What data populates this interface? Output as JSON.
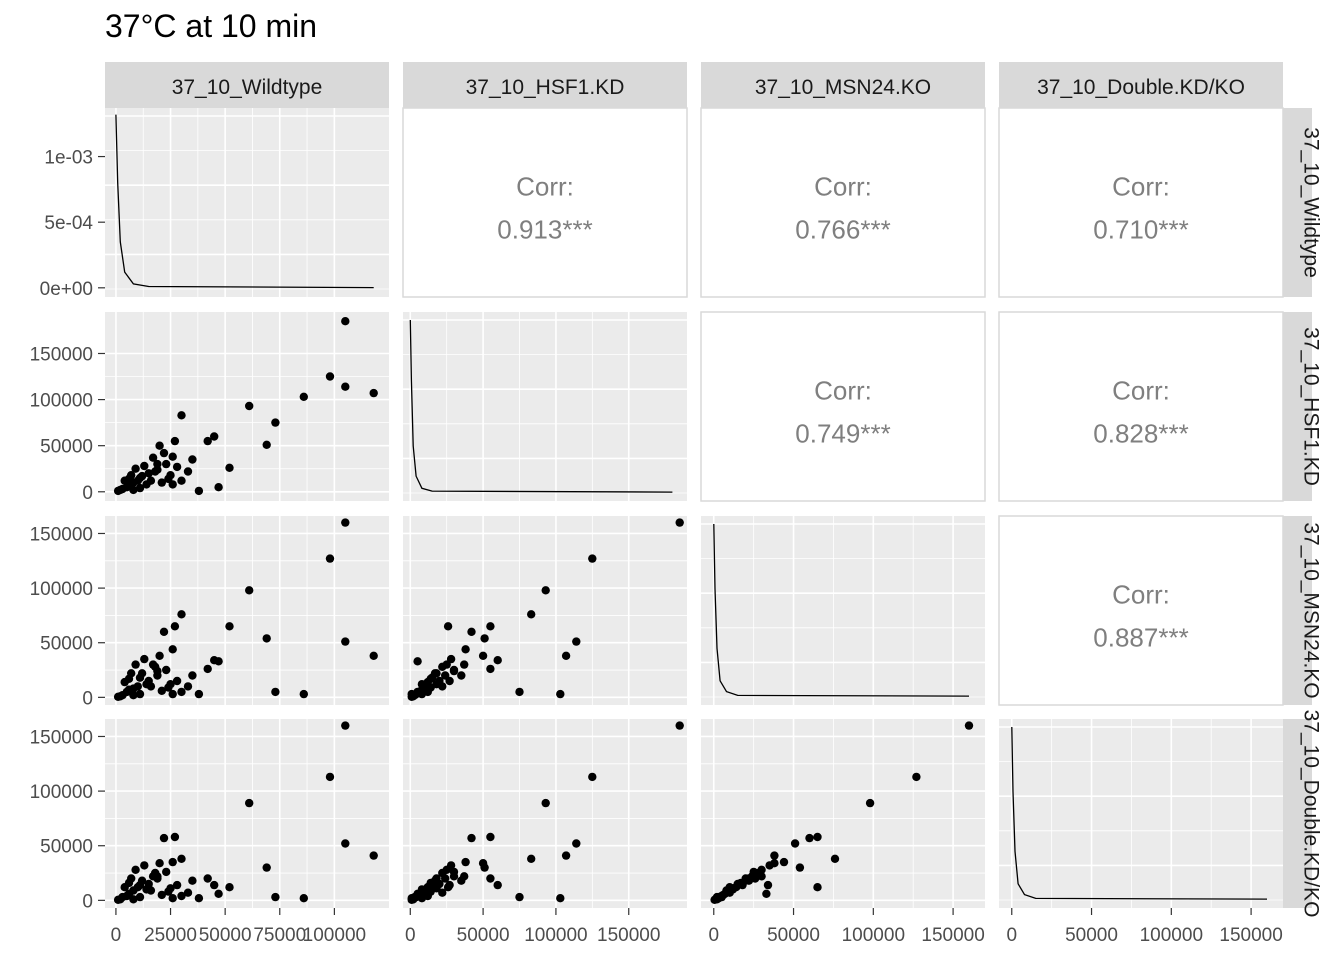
{
  "title": "37°C at 10 min",
  "chart_data": {
    "type": "scatter",
    "title": "37°C at 10 min",
    "variables": [
      "37_10_Wildtype",
      "37_10_HSF1.KD",
      "37_10_MSN24.KO",
      "37_10_Double.KD/KO"
    ],
    "axes": {
      "x": [
        {
          "ticks": [
            "0",
            "25000",
            "50000",
            "75000",
            "100000"
          ],
          "tick_values": [
            0,
            25000,
            50000,
            75000,
            100000
          ],
          "range": [
            -5000,
            125000
          ]
        },
        {
          "ticks": [
            "0",
            "50000",
            "100000",
            "150000"
          ],
          "tick_values": [
            0,
            50000,
            100000,
            150000
          ],
          "range": [
            -5000,
            190000
          ]
        },
        {
          "ticks": [
            "0",
            "50000",
            "100000",
            "150000"
          ],
          "tick_values": [
            0,
            50000,
            100000,
            150000
          ],
          "range": [
            -8000,
            170000
          ]
        },
        {
          "ticks": [
            "0",
            "50000",
            "100000",
            "150000"
          ],
          "tick_values": [
            0,
            50000,
            100000,
            150000
          ],
          "range": [
            -8000,
            170000
          ]
        }
      ],
      "y": [
        {
          "ticks": [
            "1e-03",
            "5e-04",
            "0e+00"
          ],
          "tick_values": [
            0.001,
            0.0005,
            0
          ],
          "range": [
            -7e-05,
            0.00137
          ]
        },
        {
          "ticks": [
            "150000",
            "100000",
            "50000",
            "0"
          ],
          "tick_values": [
            150000,
            100000,
            50000,
            0
          ],
          "range": [
            -10000,
            195000
          ]
        },
        {
          "ticks": [
            "150000",
            "100000",
            "50000",
            "0"
          ],
          "tick_values": [
            150000,
            100000,
            50000,
            0
          ],
          "range": [
            -7000,
            166000
          ]
        },
        {
          "ticks": [
            "150000",
            "100000",
            "50000",
            "0"
          ],
          "tick_values": [
            150000,
            100000,
            50000,
            0
          ],
          "range": [
            -7000,
            166000
          ]
        }
      ]
    },
    "correlations": [
      {
        "row": 0,
        "col": 1,
        "label": "Corr:",
        "value": "0.913***"
      },
      {
        "row": 0,
        "col": 2,
        "label": "Corr:",
        "value": "0.766***"
      },
      {
        "row": 0,
        "col": 3,
        "label": "Corr:",
        "value": "0.710***"
      },
      {
        "row": 1,
        "col": 2,
        "label": "Corr:",
        "value": "0.749***"
      },
      {
        "row": 1,
        "col": 3,
        "label": "Corr:",
        "value": "0.828***"
      },
      {
        "row": 2,
        "col": 3,
        "label": "Corr:",
        "value": "0.887***"
      }
    ],
    "density_curves": [
      {
        "var": 0,
        "points": [
          [
            0,
            0.00132
          ],
          [
            800,
            0.0008
          ],
          [
            2000,
            0.00035
          ],
          [
            4000,
            0.00012
          ],
          [
            8000,
            3e-05
          ],
          [
            15000,
            1e-05
          ],
          [
            118000,
            2e-06
          ]
        ]
      },
      {
        "var": 1,
        "points": [
          [
            0,
            1.84e-06
          ],
          [
            800,
            1.2e-06
          ],
          [
            2000,
            5e-07
          ],
          [
            4000,
            1.8e-07
          ],
          [
            8000,
            5e-08
          ],
          [
            15000,
            2e-08
          ],
          [
            180000,
            1e-08
          ]
        ]
      },
      {
        "var": 2,
        "points": [
          [
            0,
            1.6
          ],
          [
            800,
            1.0
          ],
          [
            2000,
            0.45
          ],
          [
            4000,
            0.15
          ],
          [
            8000,
            0.05
          ],
          [
            15000,
            0.015
          ],
          [
            160000,
            0.008
          ]
        ]
      },
      {
        "var": 3,
        "points": [
          [
            0,
            1.6
          ],
          [
            800,
            1.0
          ],
          [
            2000,
            0.45
          ],
          [
            4000,
            0.15
          ],
          [
            8000,
            0.05
          ],
          [
            15000,
            0.015
          ],
          [
            160000,
            0.008
          ]
        ]
      }
    ],
    "points": [
      [
        105000,
        185000,
        160000,
        160000
      ],
      [
        98000,
        125000,
        127000,
        113000
      ],
      [
        105000,
        114000,
        51000,
        52000
      ],
      [
        118000,
        107000,
        38000,
        41000
      ],
      [
        86000,
        103000,
        3000,
        2000
      ],
      [
        61000,
        93000,
        98000,
        89000
      ],
      [
        73000,
        75000,
        5000,
        3000
      ],
      [
        69000,
        51000,
        54000,
        30000
      ],
      [
        30000,
        83000,
        76000,
        38000
      ],
      [
        52000,
        26000,
        65000,
        12000
      ],
      [
        47000,
        5000,
        33000,
        6000
      ],
      [
        38000,
        1000,
        3000,
        2000
      ],
      [
        45000,
        60000,
        34000,
        14000
      ],
      [
        42000,
        55000,
        26000,
        20000
      ],
      [
        27000,
        55000,
        65000,
        58000
      ],
      [
        20000,
        50000,
        38000,
        34000
      ],
      [
        22000,
        42000,
        60000,
        57000
      ],
      [
        17000,
        37000,
        30000,
        22000
      ],
      [
        26000,
        38000,
        44000,
        35000
      ],
      [
        23000,
        30000,
        25000,
        26000
      ],
      [
        19000,
        24000,
        20000,
        20000
      ],
      [
        15000,
        20000,
        15000,
        15000
      ],
      [
        12000,
        17000,
        22000,
        18000
      ],
      [
        10000,
        12000,
        10000,
        12000
      ],
      [
        8000,
        10000,
        8000,
        9000
      ],
      [
        6000,
        8000,
        7000,
        6000
      ],
      [
        5000,
        5000,
        5000,
        4000
      ],
      [
        3000,
        3000,
        2000,
        3000
      ],
      [
        2000,
        2000,
        1000,
        1000
      ],
      [
        1000,
        1000,
        500,
        500
      ],
      [
        14000,
        8000,
        12000,
        10000
      ],
      [
        11000,
        15000,
        18000,
        14000
      ],
      [
        16000,
        12000,
        10000,
        9000
      ],
      [
        18000,
        22000,
        28000,
        25000
      ],
      [
        25000,
        18000,
        12000,
        11000
      ],
      [
        28000,
        27000,
        15000,
        14000
      ],
      [
        33000,
        22000,
        10000,
        7000
      ],
      [
        35000,
        35000,
        20000,
        18000
      ],
      [
        9000,
        25000,
        30000,
        28000
      ],
      [
        7000,
        18000,
        22000,
        20000
      ],
      [
        13000,
        28000,
        35000,
        32000
      ],
      [
        4000,
        12000,
        14000,
        12000
      ],
      [
        21000,
        10000,
        6000,
        5000
      ],
      [
        24000,
        14000,
        9000,
        8000
      ],
      [
        30000,
        12000,
        5000,
        4000
      ],
      [
        26000,
        8000,
        3000,
        2000
      ],
      [
        11000,
        4000,
        3000,
        3000
      ],
      [
        8000,
        2000,
        2000,
        1000
      ],
      [
        6000,
        14000,
        17000,
        16000
      ],
      [
        19000,
        30000,
        24000,
        22000
      ]
    ]
  }
}
